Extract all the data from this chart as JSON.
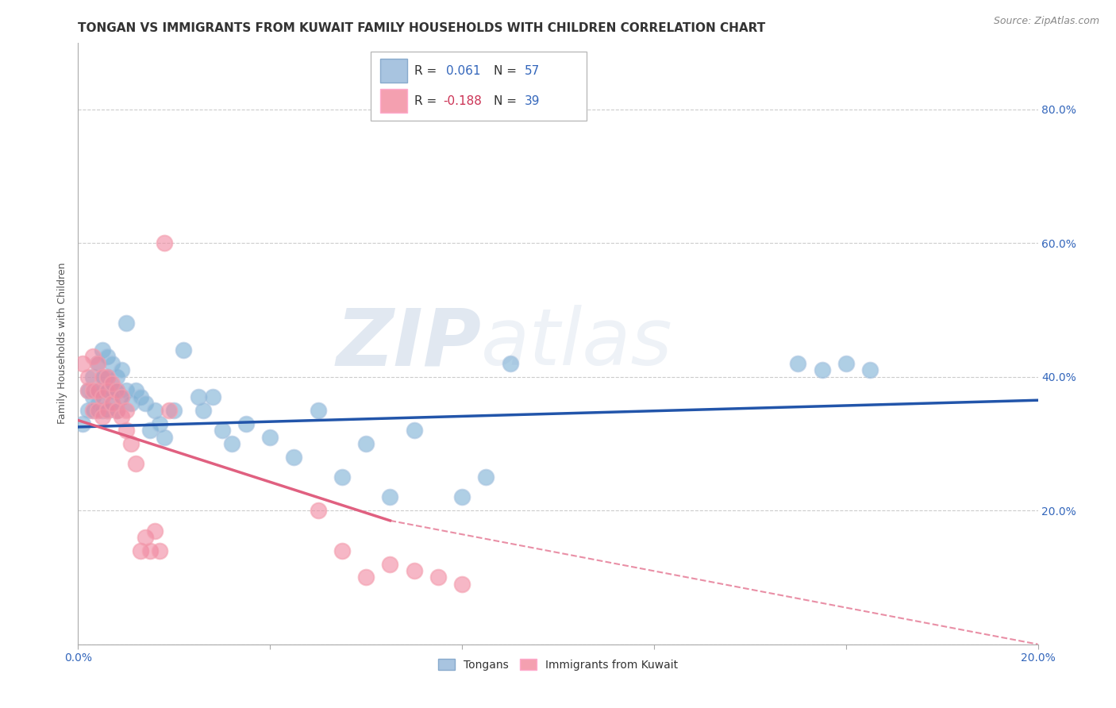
{
  "title": "TONGAN VS IMMIGRANTS FROM KUWAIT FAMILY HOUSEHOLDS WITH CHILDREN CORRELATION CHART",
  "source": "Source: ZipAtlas.com",
  "ylabel": "Family Households with Children",
  "legend_label_blue": "Tongans",
  "legend_label_pink": "Immigrants from Kuwait",
  "blue_color": "#A8C4E0",
  "pink_color": "#F4A0B0",
  "blue_scatter_color": "#7BAFD4",
  "pink_scatter_color": "#F088A0",
  "blue_line_color": "#2255AA",
  "pink_line_color": "#E06080",
  "background_color": "#FFFFFF",
  "watermark_color": "#C8D8EC",
  "blue_scatter_x": [
    0.001,
    0.002,
    0.002,
    0.003,
    0.003,
    0.003,
    0.004,
    0.004,
    0.004,
    0.005,
    0.005,
    0.005,
    0.005,
    0.006,
    0.006,
    0.006,
    0.006,
    0.007,
    0.007,
    0.007,
    0.008,
    0.008,
    0.008,
    0.009,
    0.009,
    0.01,
    0.01,
    0.011,
    0.012,
    0.013,
    0.014,
    0.015,
    0.016,
    0.017,
    0.018,
    0.02,
    0.022,
    0.025,
    0.026,
    0.028,
    0.03,
    0.032,
    0.035,
    0.04,
    0.045,
    0.05,
    0.055,
    0.06,
    0.065,
    0.07,
    0.08,
    0.085,
    0.09,
    0.15,
    0.155,
    0.16,
    0.165
  ],
  "blue_scatter_y": [
    0.33,
    0.38,
    0.35,
    0.4,
    0.37,
    0.35,
    0.42,
    0.38,
    0.36,
    0.44,
    0.4,
    0.38,
    0.35,
    0.43,
    0.4,
    0.38,
    0.35,
    0.42,
    0.38,
    0.36,
    0.4,
    0.38,
    0.35,
    0.41,
    0.37,
    0.48,
    0.38,
    0.36,
    0.38,
    0.37,
    0.36,
    0.32,
    0.35,
    0.33,
    0.31,
    0.35,
    0.44,
    0.37,
    0.35,
    0.37,
    0.32,
    0.3,
    0.33,
    0.31,
    0.28,
    0.35,
    0.25,
    0.3,
    0.22,
    0.32,
    0.22,
    0.25,
    0.42,
    0.42,
    0.41,
    0.42,
    0.41
  ],
  "pink_scatter_x": [
    0.001,
    0.002,
    0.002,
    0.003,
    0.003,
    0.003,
    0.004,
    0.004,
    0.004,
    0.005,
    0.005,
    0.005,
    0.006,
    0.006,
    0.006,
    0.007,
    0.007,
    0.008,
    0.008,
    0.009,
    0.009,
    0.01,
    0.01,
    0.011,
    0.012,
    0.013,
    0.014,
    0.015,
    0.016,
    0.017,
    0.018,
    0.019,
    0.05,
    0.055,
    0.06,
    0.065,
    0.07,
    0.075,
    0.08
  ],
  "pink_scatter_y": [
    0.42,
    0.4,
    0.38,
    0.43,
    0.38,
    0.35,
    0.42,
    0.38,
    0.35,
    0.4,
    0.37,
    0.34,
    0.4,
    0.38,
    0.35,
    0.39,
    0.36,
    0.38,
    0.35,
    0.37,
    0.34,
    0.35,
    0.32,
    0.3,
    0.27,
    0.14,
    0.16,
    0.14,
    0.17,
    0.14,
    0.6,
    0.35,
    0.2,
    0.14,
    0.1,
    0.12,
    0.11,
    0.1,
    0.09
  ],
  "xmin": 0.0,
  "xmax": 0.2,
  "ymin": 0.0,
  "ymax": 0.9,
  "grid_yticks": [
    0.0,
    0.2,
    0.4,
    0.6,
    0.8
  ],
  "right_ytick_labels": [
    "",
    "20.0%",
    "40.0%",
    "60.0%",
    "80.0%"
  ],
  "title_fontsize": 11,
  "source_fontsize": 9,
  "axis_label_fontsize": 9,
  "tick_fontsize": 10,
  "legend_fontsize": 11
}
